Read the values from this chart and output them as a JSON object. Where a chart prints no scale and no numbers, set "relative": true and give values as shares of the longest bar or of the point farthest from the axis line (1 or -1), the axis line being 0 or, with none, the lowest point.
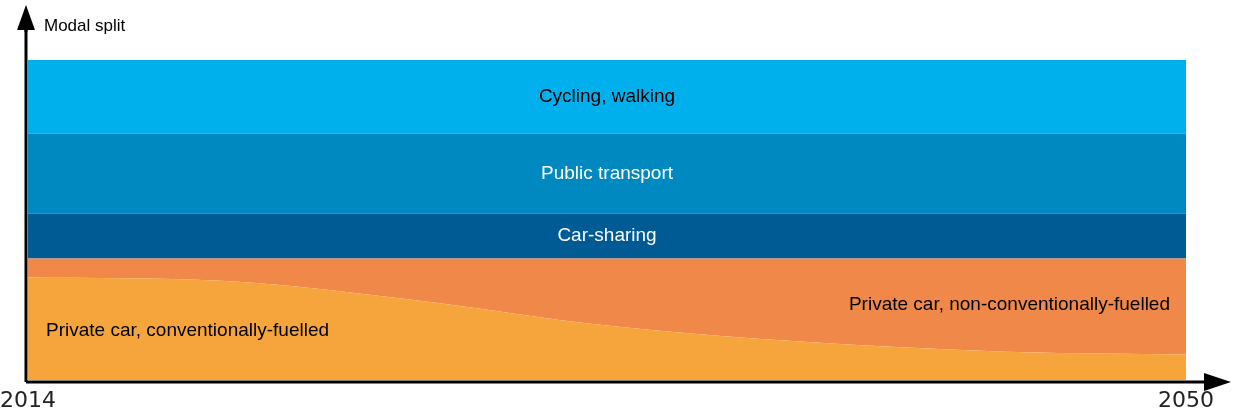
{
  "chart_data": {
    "type": "area",
    "stacked": true,
    "relative": true,
    "ylabel": "Modal split",
    "legend": false,
    "x": [
      2014,
      2020,
      2026,
      2032,
      2038,
      2044,
      2050
    ],
    "xlim": [
      2014,
      2050
    ],
    "xticks": [
      2014,
      2050
    ],
    "series": [
      {
        "name": "Private car, conventionally-fuelled",
        "color": "#f6a53c",
        "values": [
          0.32,
          0.31,
          0.25,
          0.17,
          0.12,
          0.09,
          0.08
        ]
      },
      {
        "name": "Private car, non-conventionally-fuelled",
        "color": "#f0884a",
        "values": [
          0.06,
          0.07,
          0.13,
          0.21,
          0.26,
          0.29,
          0.3
        ]
      },
      {
        "name": "Car-sharing",
        "color": "#005a94",
        "values": [
          0.14,
          0.14,
          0.14,
          0.14,
          0.14,
          0.14,
          0.14
        ]
      },
      {
        "name": "Public transport",
        "color": "#0089c0",
        "values": [
          0.25,
          0.25,
          0.25,
          0.25,
          0.25,
          0.25,
          0.25
        ]
      },
      {
        "name": "Cycling, walking",
        "color": "#00b0ec",
        "values": [
          0.23,
          0.23,
          0.23,
          0.23,
          0.23,
          0.23,
          0.23
        ]
      }
    ]
  }
}
